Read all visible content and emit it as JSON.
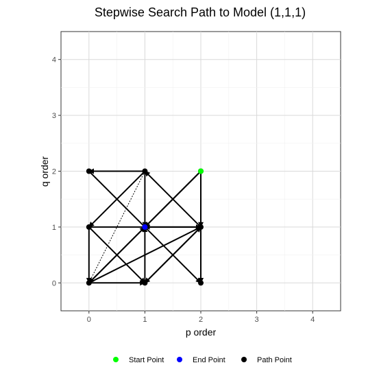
{
  "chart_data": {
    "type": "scatter",
    "title": "Stepwise Search Path to Model (1,1,1)",
    "xlabel": "p order",
    "ylabel": "q order",
    "xlim": [
      -0.5,
      4.5
    ],
    "ylim": [
      -0.5,
      4.5
    ],
    "x_ticks": [
      "0",
      "1",
      "2",
      "3",
      "4"
    ],
    "y_ticks": [
      "0",
      "1",
      "2",
      "3",
      "4"
    ],
    "grid": true,
    "legend_position": "bottom",
    "legend": [
      {
        "label": "Start Point",
        "color": "#00ff00"
      },
      {
        "label": "End Point",
        "color": "#0000ff"
      },
      {
        "label": "Path Point",
        "color": "#000000"
      }
    ],
    "start_point": {
      "p": 2,
      "q": 2
    },
    "end_point": {
      "p": 1,
      "q": 1
    },
    "path_points": [
      {
        "p": 2,
        "q": 2
      },
      {
        "p": 0,
        "q": 0
      },
      {
        "p": 1,
        "q": 0
      },
      {
        "p": 0,
        "q": 1
      },
      {
        "p": 2,
        "q": 1
      },
      {
        "p": 1,
        "q": 2
      },
      {
        "p": 2,
        "q": 0
      },
      {
        "p": 0,
        "q": 2
      },
      {
        "p": 1,
        "q": 1
      }
    ],
    "path_segments": [
      {
        "from": [
          2,
          2
        ],
        "to": [
          2,
          1
        ],
        "style": "solid"
      },
      {
        "from": [
          2,
          2
        ],
        "to": [
          1,
          1
        ],
        "style": "solid"
      },
      {
        "from": [
          2,
          2
        ],
        "to": [
          2,
          0
        ],
        "style": "solid"
      },
      {
        "from": [
          2,
          2
        ],
        "to": [
          0,
          0
        ],
        "style": "solid"
      },
      {
        "from": [
          2,
          1
        ],
        "to": [
          1,
          1
        ],
        "style": "solid"
      },
      {
        "from": [
          2,
          1
        ],
        "to": [
          2,
          0
        ],
        "style": "solid"
      },
      {
        "from": [
          2,
          1
        ],
        "to": [
          1,
          2
        ],
        "style": "solid"
      },
      {
        "from": [
          2,
          1
        ],
        "to": [
          1,
          0
        ],
        "style": "solid"
      },
      {
        "from": [
          1,
          2
        ],
        "to": [
          0,
          2
        ],
        "style": "solid"
      },
      {
        "from": [
          1,
          2
        ],
        "to": [
          1,
          1
        ],
        "style": "solid"
      },
      {
        "from": [
          1,
          2
        ],
        "to": [
          0,
          1
        ],
        "style": "solid"
      },
      {
        "from": [
          0,
          2
        ],
        "to": [
          2,
          0
        ],
        "style": "solid"
      },
      {
        "from": [
          0,
          1
        ],
        "to": [
          2,
          1
        ],
        "style": "solid"
      },
      {
        "from": [
          0,
          1
        ],
        "to": [
          0,
          0
        ],
        "style": "solid"
      },
      {
        "from": [
          0,
          1
        ],
        "to": [
          1,
          0
        ],
        "style": "solid"
      },
      {
        "from": [
          0,
          0
        ],
        "to": [
          1,
          0
        ],
        "style": "solid"
      },
      {
        "from": [
          0,
          0
        ],
        "to": [
          1,
          1
        ],
        "style": "solid"
      },
      {
        "from": [
          0,
          0
        ],
        "to": [
          2,
          1
        ],
        "style": "solid"
      },
      {
        "from": [
          1,
          0
        ],
        "to": [
          2,
          1
        ],
        "style": "solid"
      },
      {
        "from": [
          1,
          0
        ],
        "to": [
          1,
          1
        ],
        "style": "solid"
      },
      {
        "from": [
          0,
          0
        ],
        "to": [
          1,
          2
        ],
        "style": "dotted"
      }
    ]
  }
}
